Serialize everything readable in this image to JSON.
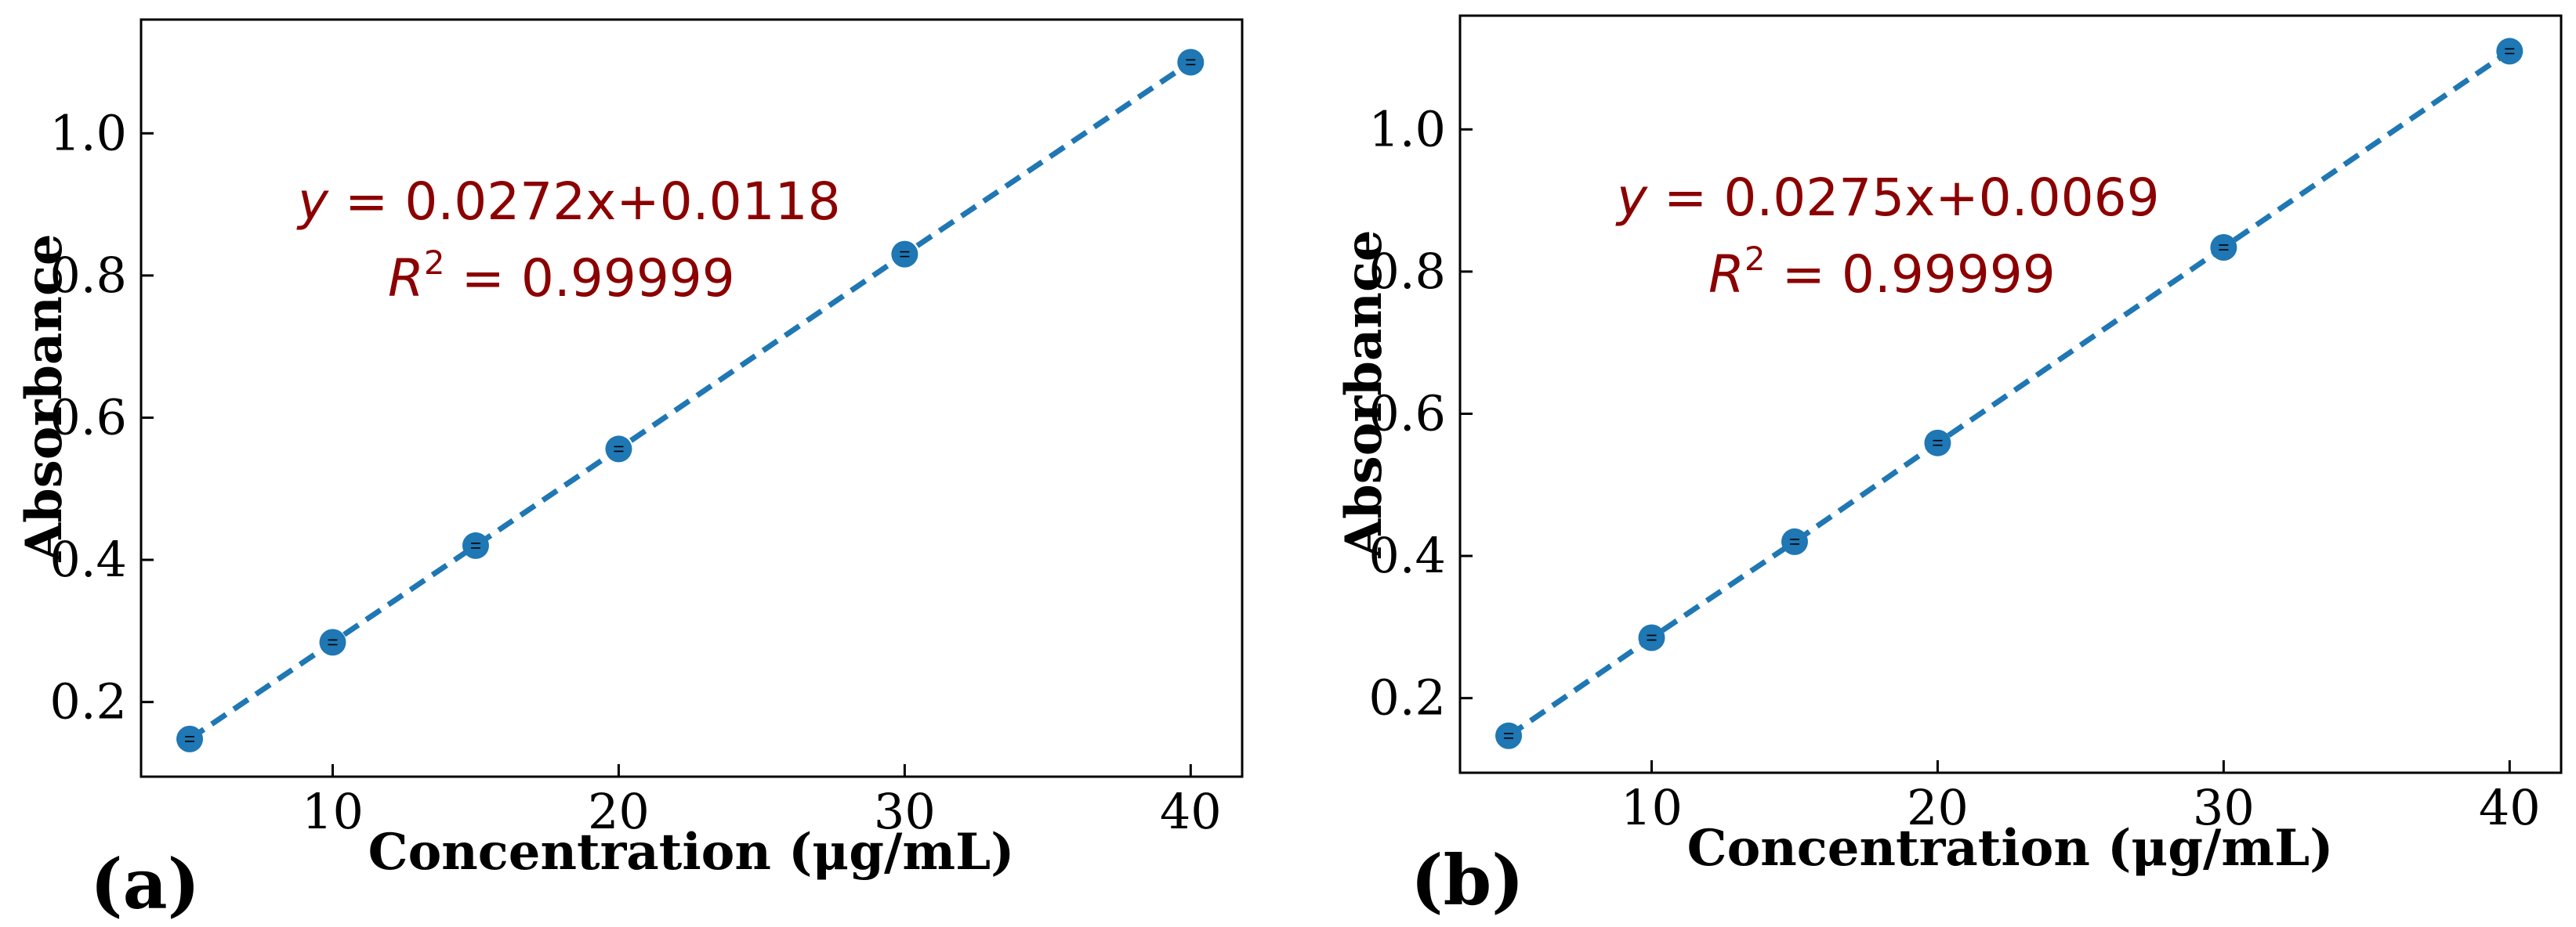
{
  "chart_data": [
    {
      "type": "scatter",
      "panel_label": "(a)",
      "xlabel": "Concentration (μg/mL)",
      "ylabel": "Absorbance",
      "x_ticks": [
        "10",
        "20",
        "30",
        "40"
      ],
      "y_ticks": [
        "0.2",
        "0.4",
        "0.6",
        "0.8",
        "1.0"
      ],
      "x_tick_values": [
        10,
        20,
        30,
        40
      ],
      "y_tick_values": [
        0.2,
        0.4,
        0.6,
        0.8,
        1.0
      ],
      "xlim": [
        3.3,
        41.8
      ],
      "ylim": [
        0.095,
        1.16
      ],
      "x": [
        5,
        10,
        15,
        20,
        30,
        40
      ],
      "y": [
        0.148,
        0.284,
        0.42,
        0.556,
        0.83,
        1.1
      ],
      "fit": {
        "slope": 0.0272,
        "intercept": 0.0118,
        "style": "dashed"
      },
      "equation_text": "0.0272x+0.0118",
      "r2_text": "0.99999",
      "grid": false,
      "colors": {
        "marker": "#1f77b4",
        "line": "#1f77b4",
        "annotation": "#8b0000"
      }
    },
    {
      "type": "scatter",
      "panel_label": "(b)",
      "xlabel": "Concentration (μg/mL)",
      "ylabel": "Absorbance",
      "x_ticks": [
        "10",
        "20",
        "30",
        "40"
      ],
      "y_ticks": [
        "0.2",
        "0.4",
        "0.6",
        "0.8",
        "1.0"
      ],
      "x_tick_values": [
        10,
        20,
        30,
        40
      ],
      "y_tick_values": [
        0.2,
        0.4,
        0.6,
        0.8,
        1.0
      ],
      "xlim": [
        3.3,
        41.8
      ],
      "ylim": [
        0.095,
        1.16
      ],
      "x": [
        5,
        10,
        15,
        20,
        30,
        40
      ],
      "y": [
        0.147,
        0.285,
        0.42,
        0.559,
        0.834,
        1.11
      ],
      "fit": {
        "slope": 0.0275,
        "intercept": 0.0069,
        "style": "dashed"
      },
      "equation_text": "0.0275x+0.0069",
      "r2_text": "0.99999",
      "grid": false,
      "colors": {
        "marker": "#1f77b4",
        "line": "#1f77b4",
        "annotation": "#8b0000"
      }
    }
  ]
}
